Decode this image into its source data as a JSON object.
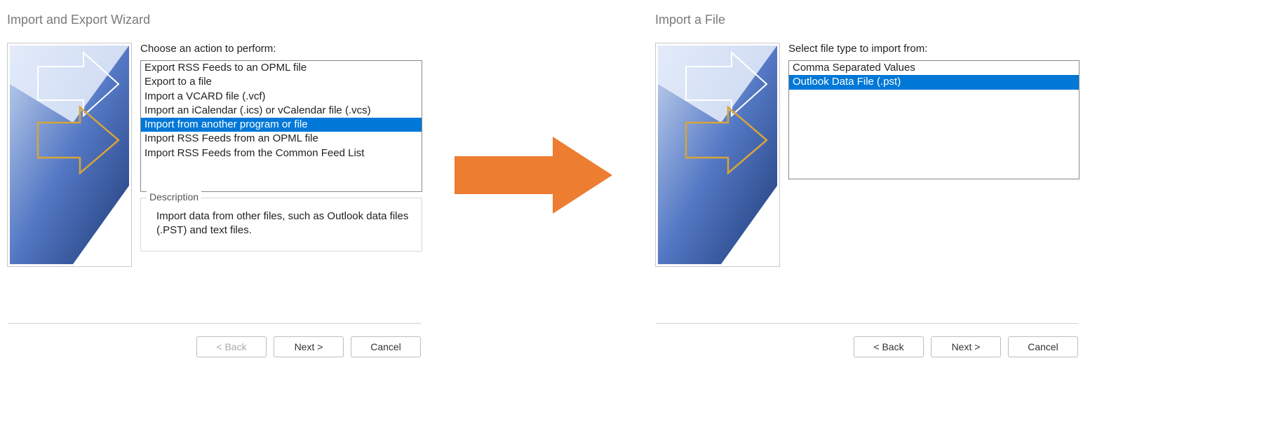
{
  "colors": {
    "selection_bg": "#0078d7",
    "selection_fg": "#ffffff",
    "title_color": "#7a7a7a",
    "border_color": "#c9c9c9",
    "button_border": "#bdbdbd",
    "transition_arrow": "#ed7d31",
    "wizard_blue_dark": "#2b4a8f",
    "wizard_blue_light": "#9db6e4",
    "wizard_arrow_outline_white": "#ffffff",
    "wizard_arrow_outline_gold": "#d7a43b"
  },
  "left_dialog": {
    "title": "Import and Export Wizard",
    "prompt": "Choose an action to perform:",
    "items": [
      "Export RSS Feeds to an OPML file",
      "Export to a file",
      "Import a VCARD file (.vcf)",
      "Import an iCalendar (.ics) or vCalendar file (.vcs)",
      "Import from another program or file",
      "Import RSS Feeds from an OPML file",
      "Import RSS Feeds from the Common Feed List"
    ],
    "selected_index": 4,
    "description_label": "Description",
    "description_text": "Import data from other files, such as Outlook data files (.PST) and text files.",
    "buttons": {
      "back": "< Back",
      "back_enabled": false,
      "next": "Next >",
      "cancel": "Cancel"
    }
  },
  "right_dialog": {
    "title": "Import a File",
    "prompt": "Select file type to import from:",
    "items": [
      "Comma Separated Values",
      "Outlook Data File (.pst)"
    ],
    "selected_index": 1,
    "buttons": {
      "back": "< Back",
      "back_enabled": true,
      "next": "Next >",
      "cancel": "Cancel"
    }
  }
}
